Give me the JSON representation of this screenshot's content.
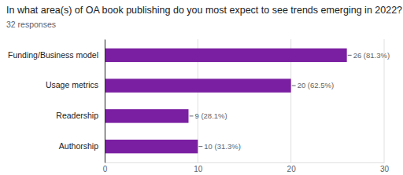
{
  "chart_data": {
    "type": "bar",
    "title": "In what area(s) of OA book publishing do you most expect to see trends emerging in 2022?",
    "subtitle": "32 responses",
    "categories": [
      "Funding/Business model",
      "Usage metrics",
      "Readership",
      "Authorship"
    ],
    "values": [
      26,
      20,
      9,
      10
    ],
    "value_labels": [
      "26 (81.3%)",
      "20 (62.5%)",
      "9 (28.1%)",
      "10 (31.3%)"
    ],
    "color": "#7b1fa2",
    "orientation": "horizontal",
    "xlim": [
      0,
      30
    ],
    "xticks": [
      0,
      10,
      20,
      30
    ],
    "grid": true,
    "data_labels": true
  }
}
